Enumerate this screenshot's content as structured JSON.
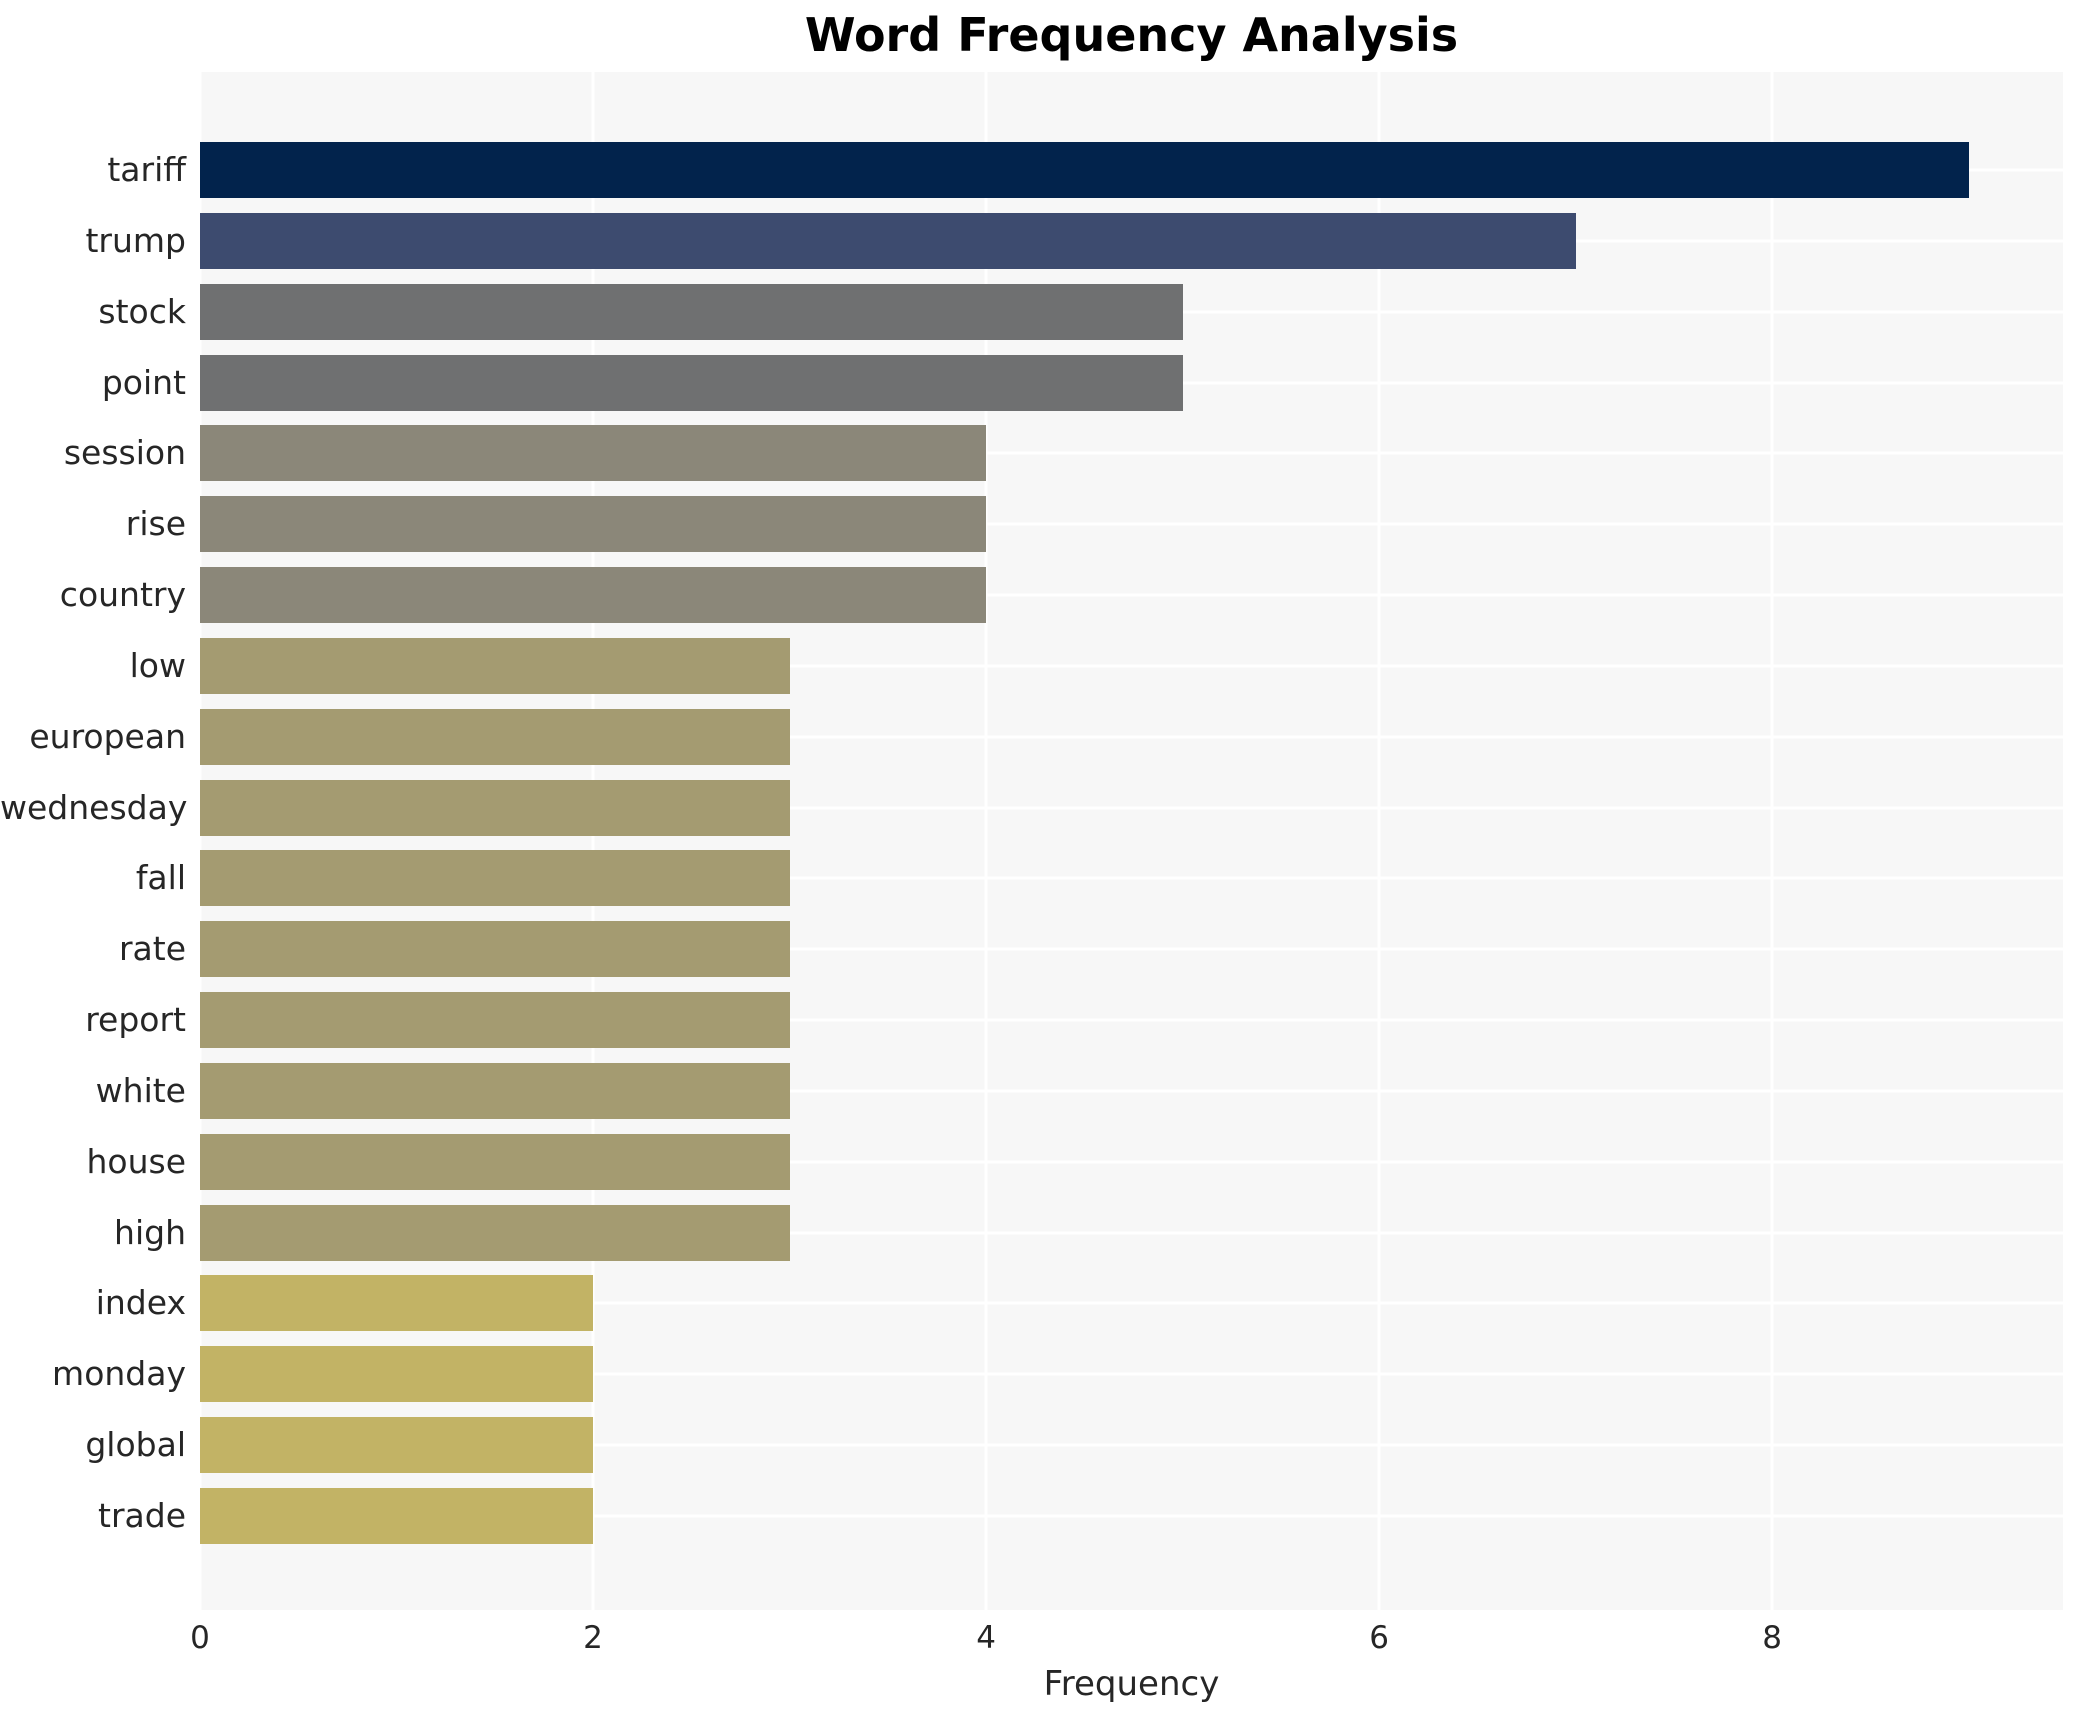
{
  "chart_data": {
    "type": "bar",
    "orientation": "horizontal",
    "title": "Word Frequency Analysis",
    "xlabel": "Frequency",
    "ylabel": "",
    "categories": [
      "tariff",
      "trump",
      "stock",
      "point",
      "session",
      "rise",
      "country",
      "low",
      "european",
      "wednesday",
      "fall",
      "rate",
      "report",
      "white",
      "house",
      "high",
      "index",
      "monday",
      "global",
      "trade"
    ],
    "values": [
      9,
      7,
      5,
      5,
      4,
      4,
      4,
      3,
      3,
      3,
      3,
      3,
      3,
      3,
      3,
      3,
      2,
      2,
      2,
      2
    ],
    "bar_colors": [
      "#02234c",
      "#3d4b6f",
      "#6f7071",
      "#6f7071",
      "#8b8779",
      "#8b8779",
      "#8b8779",
      "#a49b71",
      "#a49b71",
      "#a49b71",
      "#a49b71",
      "#a49b71",
      "#a49b71",
      "#a49b71",
      "#a49b71",
      "#a49b71",
      "#c2b365",
      "#c2b365",
      "#c2b365",
      "#c2b365"
    ],
    "xticks": [
      0,
      2,
      4,
      6,
      8
    ],
    "xlim": [
      0,
      9.48
    ],
    "grid": "on",
    "legend": "none",
    "colors": {
      "panel_background": "#f7f7f7",
      "gridline": "#ffffff",
      "tick_text": "#262626",
      "title_text": "#000000"
    }
  }
}
